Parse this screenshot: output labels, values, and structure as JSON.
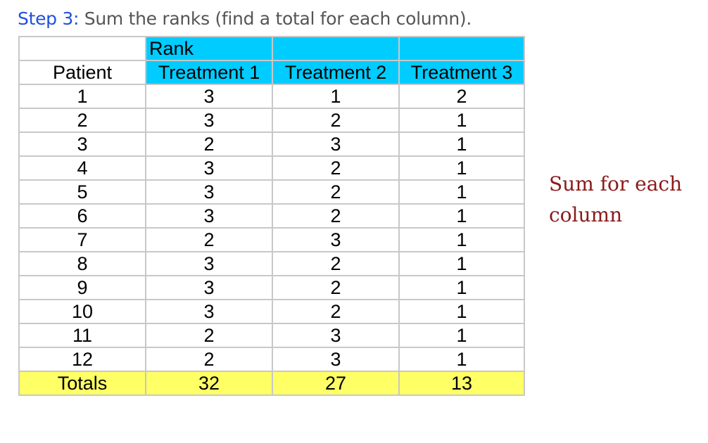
{
  "step": {
    "label": "Step 3:",
    "text": "Sum the ranks (find a total for each column)."
  },
  "table": {
    "group_header": "Rank",
    "columns": [
      "Patient",
      "Treatment 1",
      "Treatment 2",
      "Treatment 3"
    ],
    "rows": [
      [
        "1",
        "3",
        "1",
        "2"
      ],
      [
        "2",
        "3",
        "2",
        "1"
      ],
      [
        "3",
        "2",
        "3",
        "1"
      ],
      [
        "4",
        "3",
        "2",
        "1"
      ],
      [
        "5",
        "3",
        "2",
        "1"
      ],
      [
        "6",
        "3",
        "2",
        "1"
      ],
      [
        "7",
        "2",
        "3",
        "1"
      ],
      [
        "8",
        "3",
        "2",
        "1"
      ],
      [
        "9",
        "3",
        "2",
        "1"
      ],
      [
        "10",
        "3",
        "2",
        "1"
      ],
      [
        "11",
        "2",
        "3",
        "1"
      ],
      [
        "12",
        "2",
        "3",
        "1"
      ]
    ],
    "totals": [
      "Totals",
      "32",
      "27",
      "13"
    ]
  },
  "note": {
    "line1": "Sum for each",
    "line2": "column"
  },
  "colors": {
    "header_bg": "#00ccff",
    "totals_bg": "#ffff66",
    "step_label": "#1f4fe0",
    "note_text": "#8b1a1a"
  }
}
